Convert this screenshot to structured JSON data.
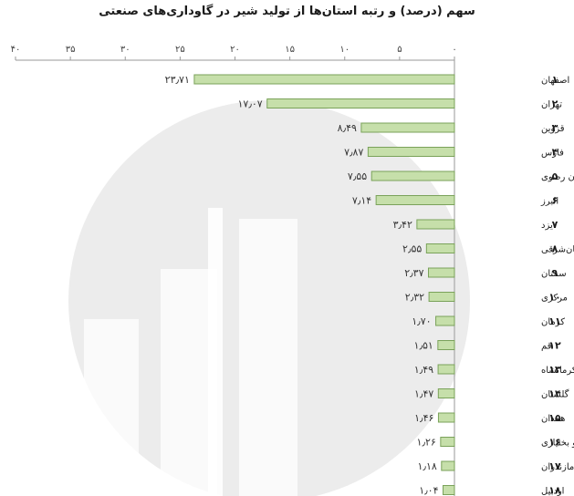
{
  "chart_data": {
    "type": "bar",
    "orientation": "horizontal",
    "direction": "rtl",
    "title": "سهم (درصد) و رتبه استان‌ها از تولید شیر در گاوداری‌های صنعتی",
    "xlim": [
      0,
      40
    ],
    "xticks": [
      0,
      5,
      10,
      15,
      20,
      25,
      30,
      35,
      40
    ],
    "xtick_labels": [
      "۰",
      "۵",
      "۱۰",
      "۱۵",
      "۲۰",
      "۲۵",
      "۳۰",
      "۳۵",
      "۴۰"
    ],
    "categories": [
      "اصفهان",
      "تهران",
      "قزوین",
      "فارس",
      "خراسان رضوی",
      "البرز",
      "یزد",
      "آذربایجان‌شرقی",
      "سمنان",
      "مرکزی",
      "کرمان",
      "قم",
      "کرمانشاه",
      "گلستان",
      "همدان",
      "چهارمحال و بختیاری",
      "مازندران",
      "اردبیل"
    ],
    "ranks": [
      "۱",
      "۲",
      "۳",
      "۴",
      "۵",
      "۶",
      "۷",
      "۸",
      "۹",
      "۱۰",
      "۱۱",
      "۱۲",
      "۱۳",
      "۱۴",
      "۱۵",
      "۱۶",
      "۱۷",
      "۱۸"
    ],
    "values": [
      23.71,
      17.07,
      8.49,
      7.87,
      7.55,
      7.14,
      3.42,
      2.55,
      2.37,
      2.32,
      1.7,
      1.51,
      1.49,
      1.47,
      1.46,
      1.26,
      1.18,
      1.04
    ],
    "value_labels": [
      "۲۳٫۷۱",
      "۱۷٫۰۷",
      "۸٫۴۹",
      "۷٫۸۷",
      "۷٫۵۵",
      "۷٫۱۴",
      "۳٫۴۲",
      "۲٫۵۵",
      "۲٫۳۷",
      "۲٫۳۲",
      "۱٫۷۰",
      "۱٫۵۱",
      "۱٫۴۹",
      "۱٫۴۷",
      "۱٫۴۶",
      "۱٫۲۶",
      "۱٫۱۸",
      "۱٫۰۴"
    ],
    "colors": {
      "bar_fill": "#c6dfaa",
      "bar_stroke": "#7aa25a",
      "axis": "#9a9a9a",
      "watermark": "#ececec"
    }
  }
}
